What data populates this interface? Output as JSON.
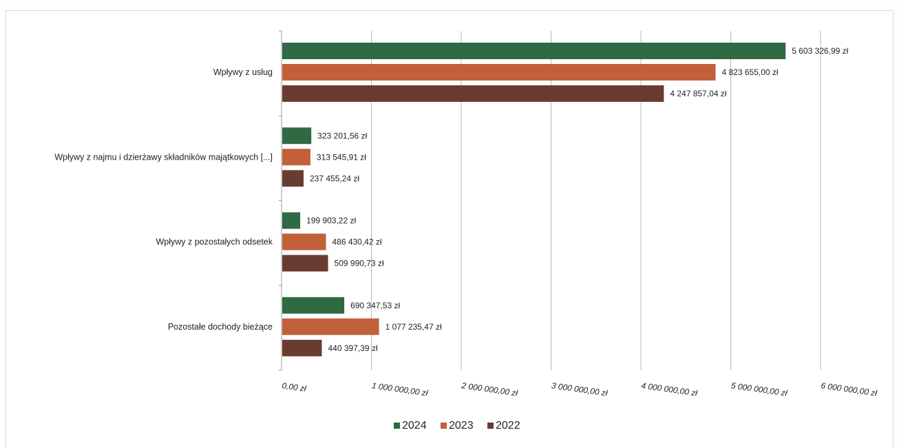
{
  "chart_data": {
    "type": "bar",
    "orientation": "horizontal",
    "categories": [
      "Wpływy z usług",
      "Wpływy z najmu i dzierżawy składników majątkowych [...]",
      "Wpływy z pozostałych odsetek",
      "Pozostałe dochody bieżące"
    ],
    "series": [
      {
        "name": "2024",
        "color": "#2f6a44",
        "values": [
          5603326.99,
          323201.56,
          199903.22,
          690347.53
        ],
        "labels": [
          "5 603 326,99 zł",
          "323 201,56 zł",
          "199 903,22 zł",
          "690 347,53 zł"
        ]
      },
      {
        "name": "2023",
        "color": "#c2603a",
        "values": [
          4823655.0,
          313545.91,
          486430.42,
          1077235.47
        ],
        "labels": [
          "4 823 655,00 zł",
          "313 545,91 zł",
          "486 430,42 zł",
          "1 077 235,47 zł"
        ]
      },
      {
        "name": "2022",
        "color": "#6a3c31",
        "values": [
          4247857.04,
          237455.24,
          509990.73,
          440397.39
        ],
        "labels": [
          "4 247 857,04 zł",
          "237 455,24 zł",
          "509 990,73 zł",
          "440 397,39 zł"
        ]
      }
    ],
    "xlim": [
      0,
      6000000
    ],
    "xticks": [
      0,
      1000000,
      2000000,
      3000000,
      4000000,
      5000000,
      6000000
    ],
    "xtick_labels": [
      "0,00 zł",
      "1 000 000,00 zł",
      "2 000 000,00 zł",
      "3 000 000,00 zł",
      "4 000 000,00 zł",
      "5 000 000,00 zł",
      "6 000 000,00 zł"
    ],
    "grid": true,
    "legend": "bottom"
  }
}
